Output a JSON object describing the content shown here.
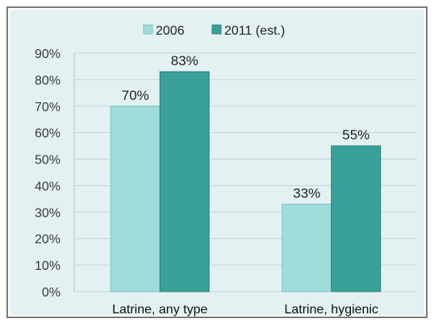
{
  "colors": {
    "background": "#e3f1f2",
    "frame_border": "#7a7a7a",
    "grid": "#c3d6d9",
    "series_2006": "#9fdcda",
    "series_2011": "#3aa09a",
    "bar_edge_2006": "#7fc2bf",
    "bar_edge_2011": "#2b807b"
  },
  "chart_data": {
    "type": "bar",
    "categories": [
      "Latrine, any type",
      "Latrine, hygienic"
    ],
    "series": [
      {
        "name": "2006",
        "values": [
          70,
          33
        ],
        "labels": [
          "70%",
          "33%"
        ]
      },
      {
        "name": "2011 (est.)",
        "values": [
          83,
          55
        ],
        "labels": [
          "83%",
          "55%"
        ]
      }
    ],
    "ylim": [
      0,
      90
    ],
    "yticks": [
      0,
      10,
      20,
      30,
      40,
      50,
      60,
      70,
      80,
      90
    ],
    "ytick_labels": [
      "0%",
      "10%",
      "20%",
      "30%",
      "40%",
      "50%",
      "60%",
      "70%",
      "80%",
      "90%"
    ],
    "title": "",
    "xlabel": "",
    "ylabel": "",
    "grid": true,
    "legend_position": "top-center"
  }
}
